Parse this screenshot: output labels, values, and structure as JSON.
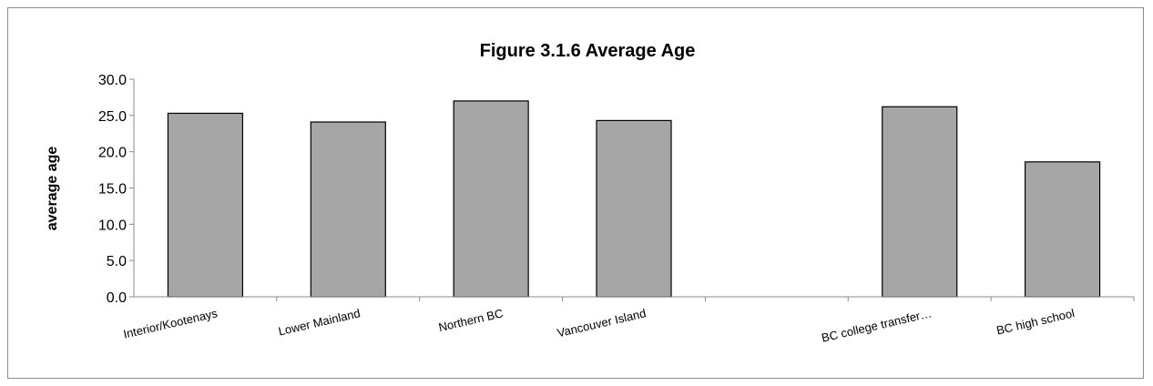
{
  "chart_data": {
    "type": "bar",
    "title": "Figure 3.1.6 Average Age",
    "xlabel": "",
    "ylabel": "average age",
    "ylim": [
      0,
      30
    ],
    "yticks": [
      "0.0",
      "5.0",
      "10.0",
      "15.0",
      "20.0",
      "25.0",
      "30.0"
    ],
    "categories": [
      "Interior/Kootenays",
      "Lower Mainland",
      "Northern BC",
      "Vancouver Island",
      "",
      "BC college transfer…",
      "BC high school"
    ],
    "values": [
      25.3,
      24.1,
      27.0,
      24.3,
      null,
      26.2,
      18.6
    ],
    "colors": {
      "bar": "#a6a6a6",
      "bar_edge": "#000000",
      "axis": "#8c8c8c"
    },
    "grid": false,
    "legend": "none"
  }
}
